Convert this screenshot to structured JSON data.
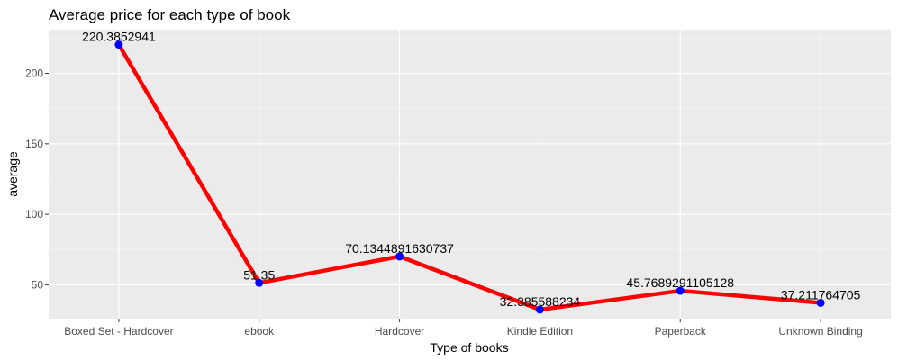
{
  "chart_data": {
    "type": "line",
    "title": "Average price for each type of book",
    "xlabel": "Type of books",
    "ylabel": "average",
    "categories": [
      "Boxed Set - Hardcover",
      "ebook",
      "Hardcover",
      "Kindle Edition",
      "Paperback",
      "Unknown Binding"
    ],
    "values": [
      220.3852941,
      51.35,
      70.1344891630737,
      32.385588234,
      45.7689291105128,
      37.211764705
    ],
    "data_labels": [
      "220.3852941",
      "51.35",
      "70.1344891630737",
      "32.385588234",
      "45.7689291105128",
      "37.211764705"
    ],
    "yticks": [
      50,
      100,
      150,
      200
    ],
    "ylim": [
      26.0,
      231.0
    ],
    "grid": true,
    "legend": "none",
    "colors": {
      "line": "#ff0000",
      "point": "#0000ff",
      "panel": "#ebebeb",
      "grid_major": "#ffffff",
      "grid_minor": "#f5f5f5",
      "tick_text": "#4d4d4d"
    }
  }
}
